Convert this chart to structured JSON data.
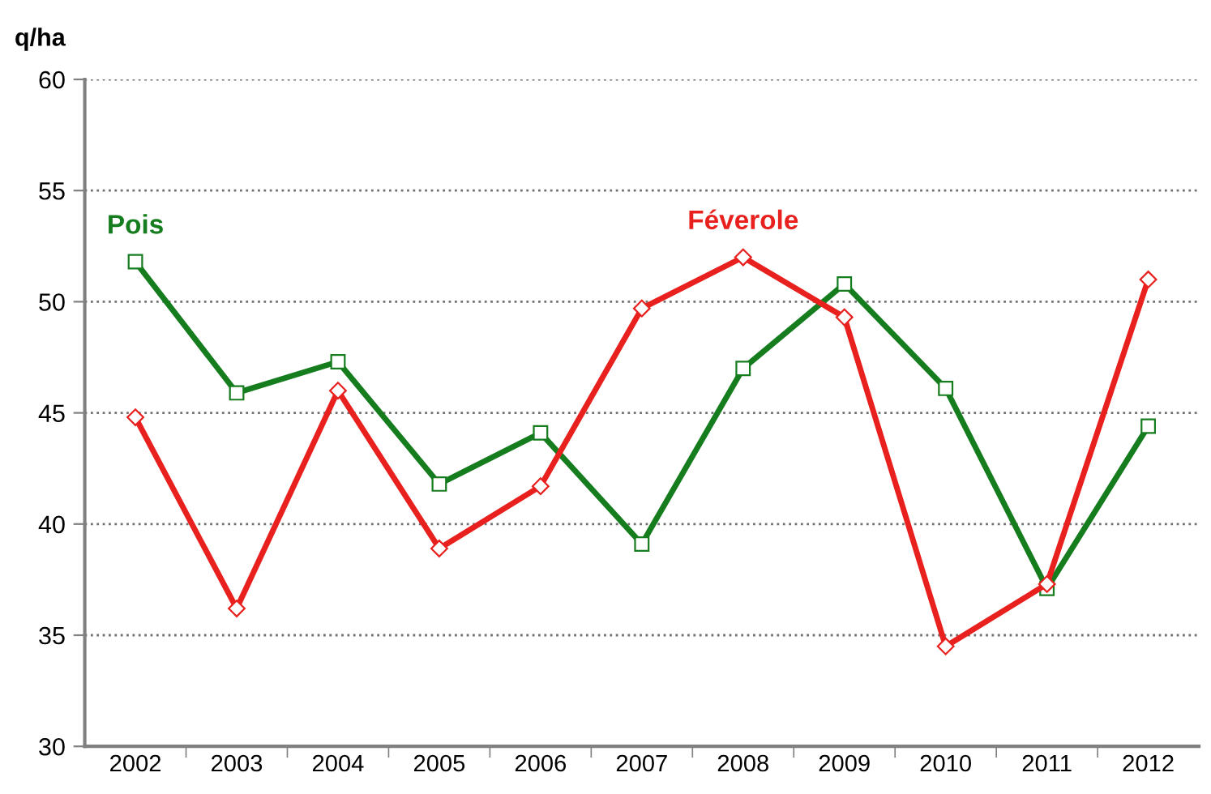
{
  "chart_data": {
    "type": "line",
    "ylabel": "q/ha",
    "categories": [
      "2002",
      "2003",
      "2004",
      "2005",
      "2006",
      "2007",
      "2008",
      "2009",
      "2010",
      "2011",
      "2012"
    ],
    "series": [
      {
        "name": "Féverole",
        "color": "#e8211f",
        "marker": "diamond",
        "values": [
          44.8,
          36.2,
          46.0,
          38.9,
          41.7,
          49.7,
          52.0,
          49.3,
          34.5,
          37.3,
          51.0
        ]
      },
      {
        "name": "Pois",
        "color": "#167d1f",
        "marker": "square",
        "values": [
          51.8,
          45.9,
          47.3,
          41.8,
          44.1,
          39.1,
          47.0,
          50.8,
          46.1,
          37.1,
          44.4
        ]
      }
    ],
    "ylim": [
      30,
      60
    ],
    "yticks": [
      30,
      35,
      40,
      45,
      50,
      55,
      60
    ],
    "grid": "y",
    "legend": false,
    "line_style": "solid"
  }
}
